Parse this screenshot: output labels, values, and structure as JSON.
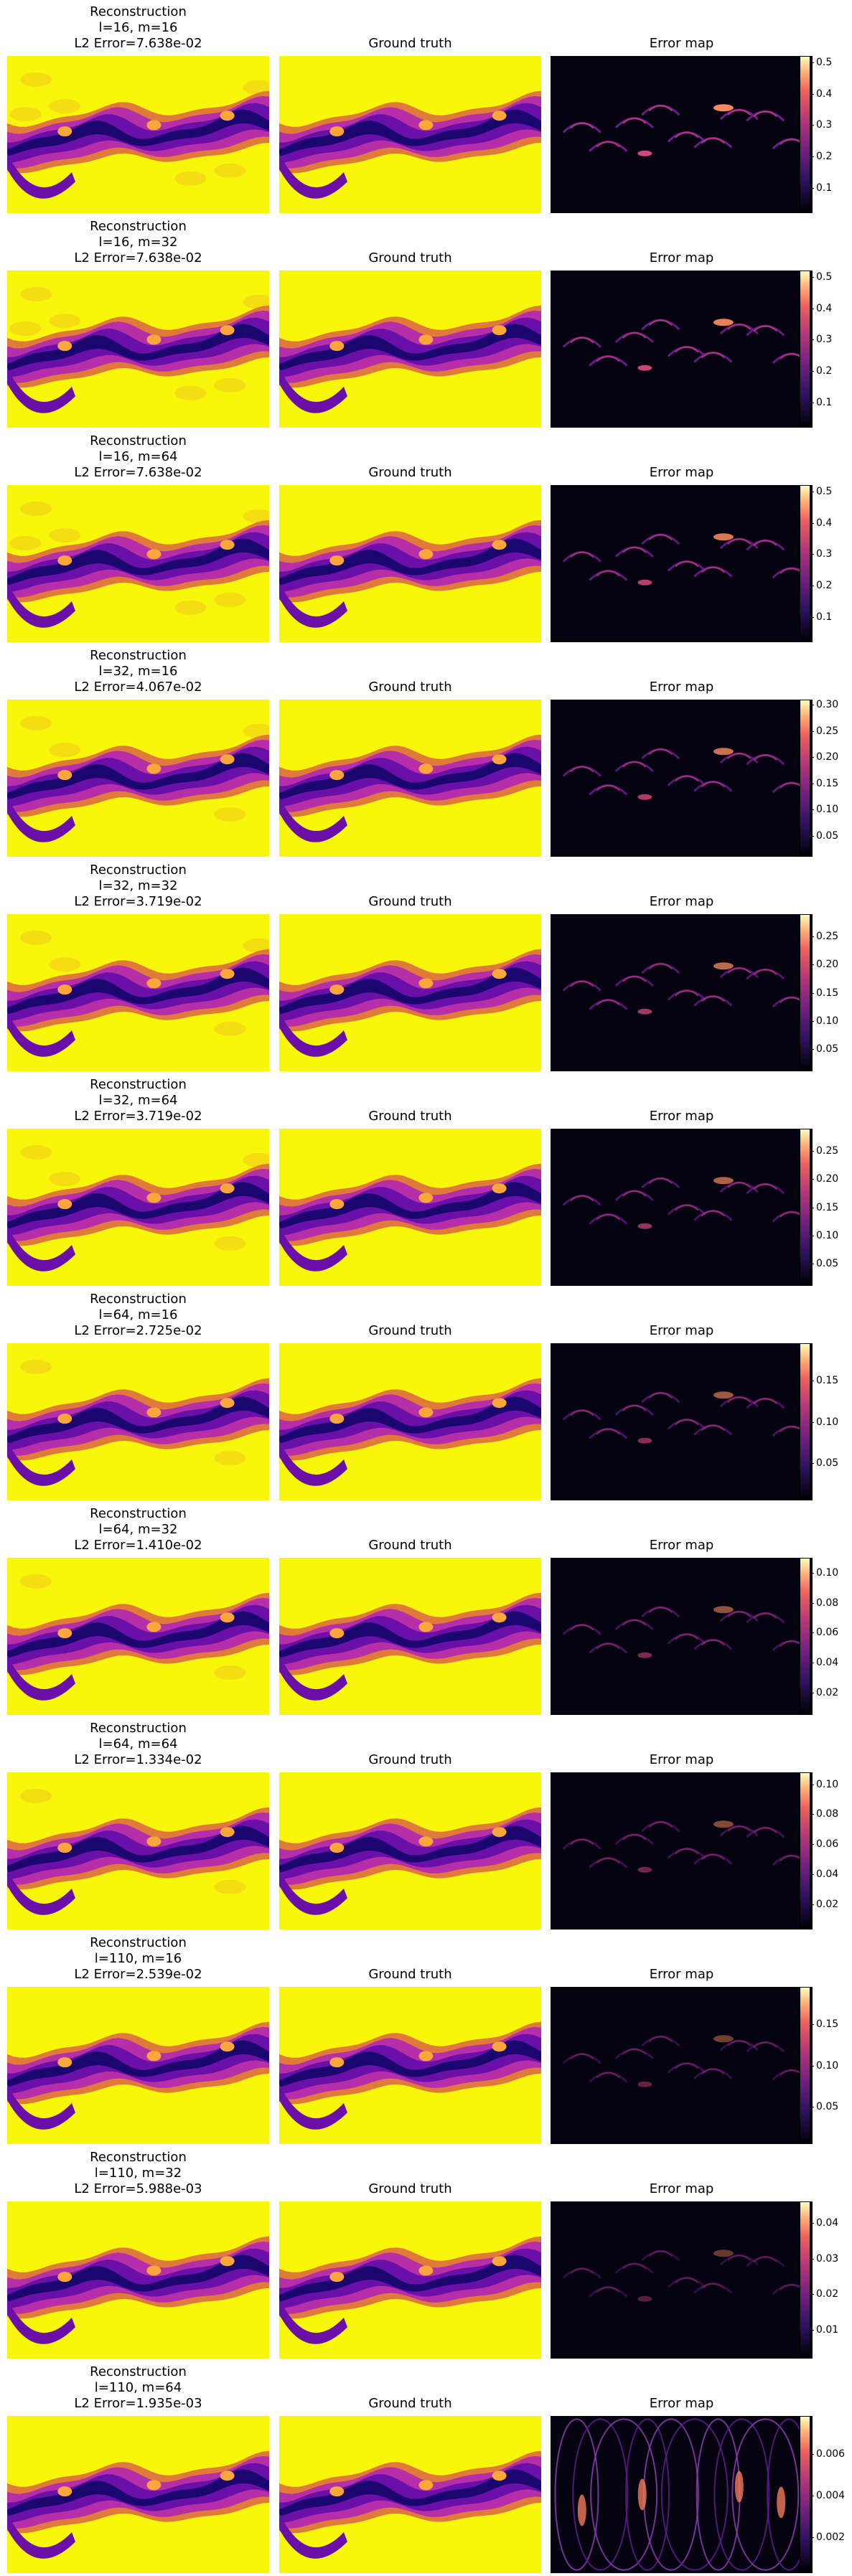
{
  "chart_data": {
    "type": "heatmap",
    "column_titles": {
      "ground_truth": "Ground truth",
      "error_map": "Error map"
    },
    "reconstruction_label": "Reconstruction",
    "colormaps": {
      "field": "plasma",
      "error": "magma"
    },
    "rows": [
      {
        "params": "l=16, m=16",
        "error": "L2 Error=7.638e-02",
        "cbar_ticks": [
          "0.5",
          "0.4",
          "0.3",
          "0.2",
          "0.1"
        ],
        "cbar_values": [
          0.5,
          0.4,
          0.3,
          0.2,
          0.1
        ],
        "cbar_range": [
          0.02,
          0.52
        ]
      },
      {
        "params": "l=16, m=32",
        "error": "L2 Error=7.638e-02",
        "cbar_ticks": [
          "0.5",
          "0.4",
          "0.3",
          "0.2",
          "0.1"
        ],
        "cbar_values": [
          0.5,
          0.4,
          0.3,
          0.2,
          0.1
        ],
        "cbar_range": [
          0.02,
          0.52
        ]
      },
      {
        "params": "l=16, m=64",
        "error": "L2 Error=7.638e-02",
        "cbar_ticks": [
          "0.5",
          "0.4",
          "0.3",
          "0.2",
          "0.1"
        ],
        "cbar_values": [
          0.5,
          0.4,
          0.3,
          0.2,
          0.1
        ],
        "cbar_range": [
          0.02,
          0.52
        ]
      },
      {
        "params": "l=32, m=16",
        "error": "L2 Error=4.067e-02",
        "cbar_ticks": [
          "0.30",
          "0.25",
          "0.20",
          "0.15",
          "0.10",
          "0.05"
        ],
        "cbar_values": [
          0.3,
          0.25,
          0.2,
          0.15,
          0.1,
          0.05
        ],
        "cbar_range": [
          0.01,
          0.31
        ]
      },
      {
        "params": "l=32, m=32",
        "error": "L2 Error=3.719e-02",
        "cbar_ticks": [
          "0.25",
          "0.20",
          "0.15",
          "0.10",
          "0.05"
        ],
        "cbar_values": [
          0.25,
          0.2,
          0.15,
          0.1,
          0.05
        ],
        "cbar_range": [
          0.01,
          0.29
        ]
      },
      {
        "params": "l=32, m=64",
        "error": "L2 Error=3.719e-02",
        "cbar_ticks": [
          "0.25",
          "0.20",
          "0.15",
          "0.10",
          "0.05"
        ],
        "cbar_values": [
          0.25,
          0.2,
          0.15,
          0.1,
          0.05
        ],
        "cbar_range": [
          0.01,
          0.29
        ]
      },
      {
        "params": "l=64, m=16",
        "error": "L2 Error=2.725e-02",
        "cbar_ticks": [
          "0.15",
          "0.10",
          "0.05"
        ],
        "cbar_values": [
          0.15,
          0.1,
          0.05
        ],
        "cbar_range": [
          0.005,
          0.195
        ]
      },
      {
        "params": "l=64, m=32",
        "error": "L2 Error=1.410e-02",
        "cbar_ticks": [
          "0.10",
          "0.08",
          "0.06",
          "0.04",
          "0.02"
        ],
        "cbar_values": [
          0.1,
          0.08,
          0.06,
          0.04,
          0.02
        ],
        "cbar_range": [
          0.005,
          0.11
        ]
      },
      {
        "params": "l=64, m=64",
        "error": "L2 Error=1.334e-02",
        "cbar_ticks": [
          "0.10",
          "0.08",
          "0.06",
          "0.04",
          "0.02"
        ],
        "cbar_values": [
          0.1,
          0.08,
          0.06,
          0.04,
          0.02
        ],
        "cbar_range": [
          0.003,
          0.108
        ]
      },
      {
        "params": "l=110, m=16",
        "error": "L2 Error=2.539e-02",
        "cbar_ticks": [
          "0.15",
          "0.10",
          "0.05"
        ],
        "cbar_values": [
          0.15,
          0.1,
          0.05
        ],
        "cbar_range": [
          0.005,
          0.195
        ]
      },
      {
        "params": "l=110, m=32",
        "error": "L2 Error=5.988e-03",
        "cbar_ticks": [
          "0.04",
          "0.03",
          "0.02",
          "0.01"
        ],
        "cbar_values": [
          0.04,
          0.03,
          0.02,
          0.01
        ],
        "cbar_range": [
          0.002,
          0.046
        ]
      },
      {
        "params": "l=110, m=64",
        "error": "L2 Error=1.935e-03",
        "cbar_ticks": [
          "0.006",
          "0.004",
          "0.002"
        ],
        "cbar_values": [
          0.006,
          0.004,
          0.002
        ],
        "cbar_range": [
          0.0003,
          0.0078
        ]
      }
    ]
  }
}
